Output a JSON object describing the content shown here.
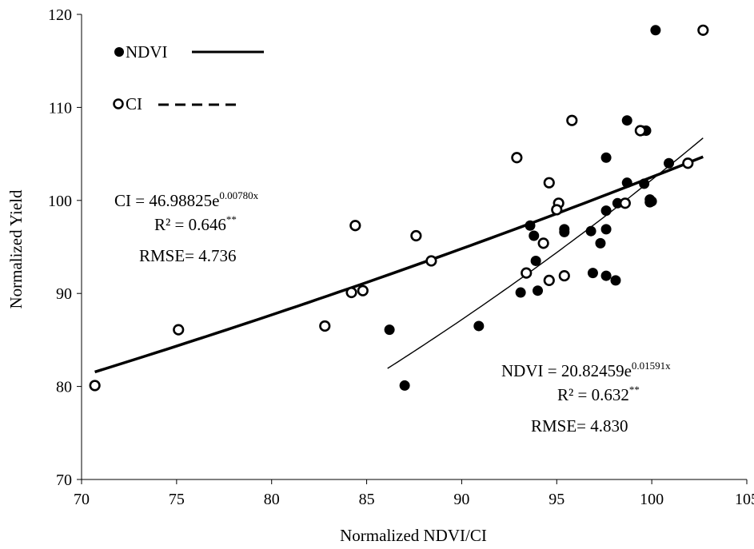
{
  "chart_data": {
    "type": "scatter",
    "xlabel": "Normalized NDVI/CI",
    "ylabel": "Normalized Yield",
    "xlim": [
      70,
      105
    ],
    "ylim": [
      70,
      120
    ],
    "x_ticks": [
      "70",
      "75",
      "80",
      "85",
      "90",
      "95",
      "100",
      "105"
    ],
    "y_ticks": [
      "70",
      "80",
      "90",
      "100",
      "110",
      "120"
    ],
    "grid": false,
    "legend_position": "top-left",
    "series": [
      {
        "name": "NDVI",
        "marker": "filled-circle",
        "line_style": "solid",
        "color": "#000000",
        "points": [
          [
            100.2,
            118.3
          ],
          [
            98.7,
            108.6
          ],
          [
            99.5,
            107.5
          ],
          [
            99.7,
            107.5
          ],
          [
            97.6,
            104.6
          ],
          [
            100.9,
            104.0
          ],
          [
            98.7,
            101.9
          ],
          [
            99.6,
            101.8
          ],
          [
            99.9,
            100.1
          ],
          [
            100.0,
            99.9
          ],
          [
            99.9,
            99.8
          ],
          [
            98.2,
            99.7
          ],
          [
            97.6,
            98.9
          ],
          [
            93.6,
            97.3
          ],
          [
            95.4,
            96.9
          ],
          [
            97.6,
            96.9
          ],
          [
            96.8,
            96.7
          ],
          [
            95.4,
            96.6
          ],
          [
            93.8,
            96.2
          ],
          [
            97.3,
            95.4
          ],
          [
            93.9,
            93.5
          ],
          [
            96.9,
            92.2
          ],
          [
            97.6,
            91.9
          ],
          [
            98.1,
            91.4
          ],
          [
            93.1,
            90.1
          ],
          [
            94.0,
            90.3
          ],
          [
            90.9,
            86.5
          ],
          [
            86.2,
            86.1
          ],
          [
            87.0,
            80.1
          ]
        ],
        "fit": {
          "equation": "NDVI = 20.82459e",
          "exponent": "0.01591x",
          "a": 20.82459,
          "b": 0.01591,
          "x_range": [
            86.1,
            102.7
          ],
          "r2_label": "R² = 0.632",
          "significance": "**",
          "rmse_label": "RMSE= 4.830"
        }
      },
      {
        "name": "CI",
        "marker": "open-circle",
        "line_style": "dashed",
        "color": "#000000",
        "points": [
          [
            102.7,
            118.3
          ],
          [
            95.8,
            108.6
          ],
          [
            99.4,
            107.5
          ],
          [
            92.9,
            104.6
          ],
          [
            101.9,
            104.0
          ],
          [
            94.6,
            101.9
          ],
          [
            95.1,
            99.7
          ],
          [
            95.0,
            99.0
          ],
          [
            98.6,
            99.7
          ],
          [
            84.4,
            97.3
          ],
          [
            87.6,
            96.2
          ],
          [
            94.3,
            95.4
          ],
          [
            88.4,
            93.5
          ],
          [
            93.4,
            92.2
          ],
          [
            95.4,
            91.9
          ],
          [
            94.6,
            91.4
          ],
          [
            84.2,
            90.1
          ],
          [
            84.8,
            90.3
          ],
          [
            82.8,
            86.5
          ],
          [
            75.1,
            86.1
          ],
          [
            70.7,
            80.1
          ]
        ],
        "fit": {
          "equation": "CI = 46.98825e",
          "exponent": "0.00780x",
          "a": 46.98825,
          "b": 0.0078,
          "x_range": [
            70.7,
            102.7
          ],
          "r2_label": "R² = 0.646",
          "significance": "**",
          "rmse_label": "RMSE= 4.736"
        }
      }
    ]
  }
}
